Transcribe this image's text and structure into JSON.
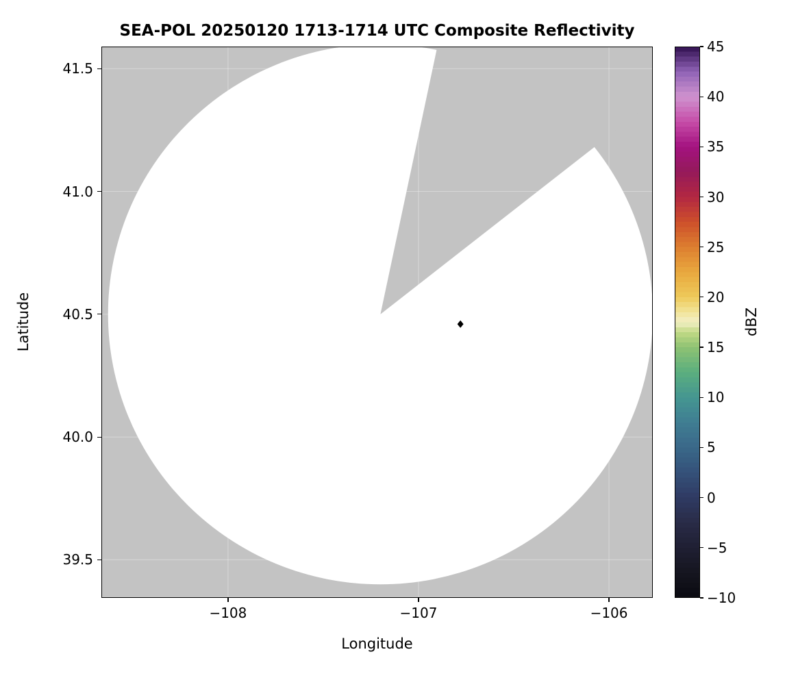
{
  "figure": {
    "background": "#ffffff"
  },
  "chart_data": {
    "type": "heatmap",
    "title": "SEA-POL 20250120 1713-1714 UTC Composite Reflectivity",
    "xlabel": "Longitude",
    "ylabel": "Latitude",
    "xlim": [
      -108.665,
      -105.77
    ],
    "ylim": [
      39.345,
      41.59
    ],
    "grid": "faint white gridlines at major ticks",
    "xticks": [
      {
        "value": -108,
        "label": "−108"
      },
      {
        "value": -107,
        "label": "−107"
      },
      {
        "value": -106,
        "label": "−106"
      }
    ],
    "yticks": [
      {
        "value": 39.5,
        "label": "39.5"
      },
      {
        "value": 40.0,
        "label": "40.0"
      },
      {
        "value": 40.5,
        "label": "40.5"
      },
      {
        "value": 41.0,
        "label": "41.0"
      },
      {
        "value": 41.5,
        "label": "41.5"
      }
    ],
    "radar_coverage": {
      "center": {
        "lon": -107.2,
        "lat": 40.5
      },
      "radius_deg": {
        "lon": 1.43,
        "lat": 1.1
      },
      "blocked_sector_azimuth_deg": {
        "from": 12,
        "to": 55
      },
      "coverage_color": "#ffffff",
      "no_data_color": "#c3c3c3"
    },
    "points": [
      {
        "lon": -106.78,
        "lat": 40.46,
        "marker": "diamond",
        "color": "#000000"
      }
    ],
    "colorbar": {
      "label": "dBZ",
      "min": -10,
      "max": 45,
      "ticks": [
        {
          "value": 45,
          "label": "45"
        },
        {
          "value": 40,
          "label": "40"
        },
        {
          "value": 35,
          "label": "35"
        },
        {
          "value": 30,
          "label": "30"
        },
        {
          "value": 25,
          "label": "25"
        },
        {
          "value": 20,
          "label": "20"
        },
        {
          "value": 15,
          "label": "15"
        },
        {
          "value": 10,
          "label": "10"
        },
        {
          "value": 5,
          "label": "5"
        },
        {
          "value": 0,
          "label": "0"
        },
        {
          "value": -5,
          "label": "−5"
        },
        {
          "value": -10,
          "label": "−10"
        }
      ],
      "stops": [
        [
          -10,
          "#0a0a10"
        ],
        [
          -7.5,
          "#15151f"
        ],
        [
          -5,
          "#1f1f33"
        ],
        [
          -2.5,
          "#292b47"
        ],
        [
          0,
          "#2f3a63"
        ],
        [
          2.5,
          "#345179"
        ],
        [
          5,
          "#3a6889"
        ],
        [
          7.5,
          "#3f7d92"
        ],
        [
          10,
          "#459691"
        ],
        [
          12.5,
          "#5bae7e"
        ],
        [
          15,
          "#8ec273"
        ],
        [
          16.5,
          "#c2da85"
        ],
        [
          17.5,
          "#f2efc5"
        ],
        [
          18.5,
          "#f2e49a"
        ],
        [
          20,
          "#eec95a"
        ],
        [
          22.5,
          "#e8a83e"
        ],
        [
          25,
          "#dd7e2f"
        ],
        [
          27.5,
          "#cd4f2b"
        ],
        [
          30,
          "#b22742"
        ],
        [
          32.5,
          "#951a5a"
        ],
        [
          35,
          "#a31280"
        ],
        [
          37.5,
          "#c64da8"
        ],
        [
          40,
          "#cf93cf"
        ],
        [
          42.5,
          "#8f62b5"
        ],
        [
          45,
          "#301050"
        ]
      ]
    }
  }
}
